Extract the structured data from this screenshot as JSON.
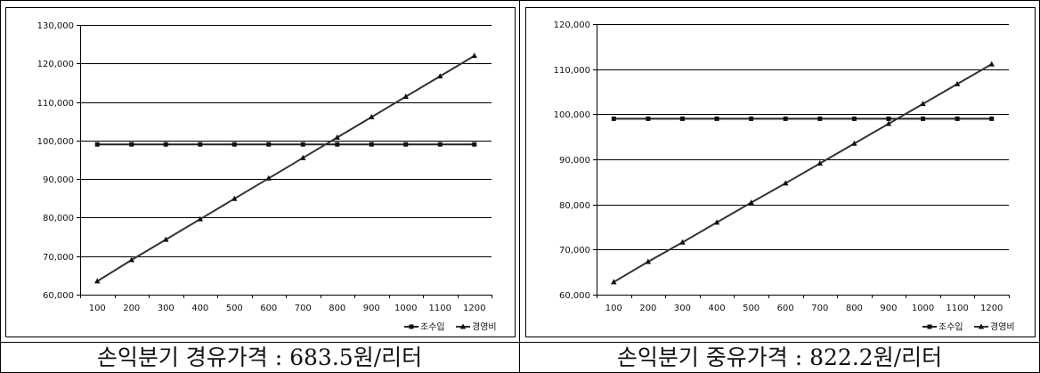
{
  "chart_data": [
    {
      "type": "line",
      "x": [
        100,
        200,
        300,
        400,
        500,
        600,
        700,
        800,
        900,
        1000,
        1100,
        1200
      ],
      "ylim": [
        60000,
        130000
      ],
      "yticks": [
        60000,
        70000,
        80000,
        90000,
        100000,
        110000,
        120000,
        130000
      ],
      "ytick_labels": [
        "60,000",
        "70,000",
        "80,000",
        "90,000",
        "100,000",
        "110,000",
        "120,000",
        "130,000"
      ],
      "xtick_labels": [
        "100",
        "200",
        "300",
        "400",
        "500",
        "600",
        "700",
        "800",
        "900",
        "1000",
        "1100",
        "1200"
      ],
      "grid": "horizontal",
      "legend_position": "bottom-right",
      "series": [
        {
          "name": "조수입",
          "marker": "square",
          "color": "#222222",
          "values": [
            99000,
            99000,
            99000,
            99000,
            99000,
            99000,
            99000,
            99000,
            99000,
            99000,
            99000,
            99000
          ]
        },
        {
          "name": "경영비",
          "marker": "triangle",
          "color": "#333333",
          "values": [
            63500,
            69000,
            74300,
            79600,
            84900,
            90200,
            95500,
            100800,
            106100,
            111400,
            116700,
            122000
          ]
        }
      ],
      "caption": "손익분기 경유가격 : 683.5원/리터"
    },
    {
      "type": "line",
      "x": [
        100,
        200,
        300,
        400,
        500,
        600,
        700,
        800,
        900,
        1000,
        1100,
        1200
      ],
      "ylim": [
        60000,
        120000
      ],
      "yticks": [
        60000,
        70000,
        80000,
        90000,
        100000,
        110000,
        120000
      ],
      "ytick_labels": [
        "60,000",
        "70,000",
        "80,000",
        "90,000",
        "100,000",
        "110,000",
        "120,000"
      ],
      "xtick_labels": [
        "100",
        "200",
        "300",
        "400",
        "500",
        "600",
        "700",
        "800",
        "900",
        "1000",
        "1100",
        "1200"
      ],
      "grid": "horizontal",
      "legend_position": "bottom-right",
      "series": [
        {
          "name": "조수입",
          "marker": "square",
          "color": "#222222",
          "values": [
            99000,
            99000,
            99000,
            99000,
            99000,
            99000,
            99000,
            99000,
            99000,
            99000,
            99000,
            99000
          ]
        },
        {
          "name": "경영비",
          "marker": "triangle",
          "color": "#333333",
          "values": [
            62800,
            67300,
            71600,
            76000,
            80400,
            84700,
            89100,
            93500,
            97900,
            102300,
            106700,
            111100
          ]
        }
      ],
      "caption": "손익분기 중유가격 : 822.2원/리터"
    }
  ]
}
